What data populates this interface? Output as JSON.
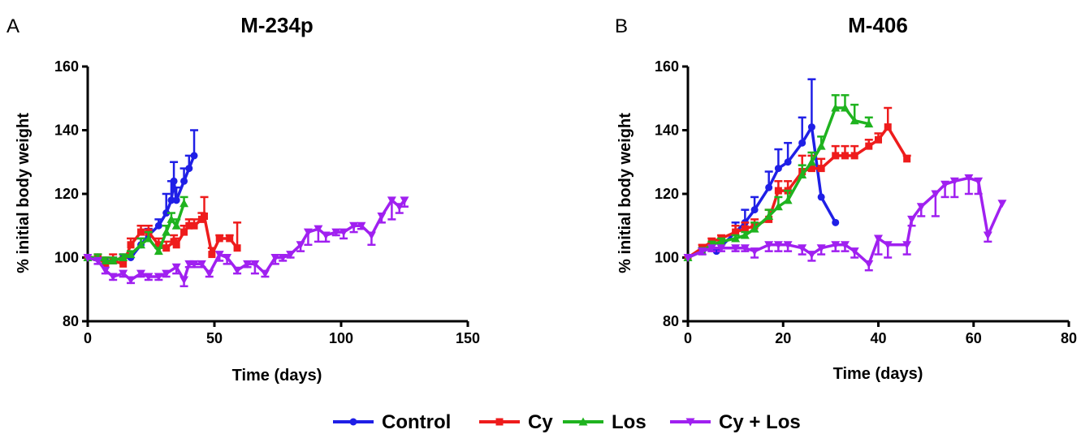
{
  "legend": [
    {
      "name": "Control",
      "color": "#1f1fe6",
      "marker": "circle"
    },
    {
      "name": "Cy",
      "color": "#ee1c1c",
      "marker": "square"
    },
    {
      "name": "Los",
      "color": "#1fb31f",
      "marker": "triangle-up"
    },
    {
      "name": "Cy + Los",
      "color": "#a020f0",
      "marker": "triangle-down"
    }
  ],
  "chart_data": [
    {
      "panel": "A",
      "title": "M-234p",
      "type": "line",
      "xlabel": "Time (days)",
      "ylabel": "% initial body weight",
      "xlim": [
        0,
        150
      ],
      "ylim": [
        80,
        160
      ],
      "xticks": [
        0,
        50,
        100,
        150
      ],
      "yticks": [
        80,
        100,
        120,
        140,
        160
      ],
      "grid": false,
      "error_bars": true,
      "series": [
        {
          "name": "Control",
          "color": "#1f1fe6",
          "marker": "circle",
          "x": [
            0,
            4,
            7,
            10,
            14,
            17,
            21,
            24,
            28,
            31,
            33,
            34,
            35,
            38,
            40,
            42
          ],
          "y": [
            100,
            100,
            99,
            99,
            100,
            100,
            104,
            107,
            110,
            114,
            118,
            124,
            118,
            124,
            128,
            132
          ],
          "err": [
            0,
            0,
            1,
            1,
            1,
            1,
            2,
            2,
            2,
            6,
            6,
            6,
            4,
            4,
            4,
            8
          ]
        },
        {
          "name": "Cy",
          "color": "#ee1c1c",
          "marker": "square",
          "x": [
            0,
            4,
            7,
            10,
            14,
            17,
            21,
            24,
            28,
            31,
            34,
            35,
            38,
            40,
            42,
            45,
            46,
            49,
            52,
            56,
            59
          ],
          "y": [
            100,
            100,
            98,
            99,
            98,
            104,
            108,
            108,
            104,
            103,
            105,
            104,
            108,
            110,
            110,
            112,
            113,
            101,
            106,
            106,
            103
          ],
          "err": [
            0,
            1,
            2,
            2,
            2,
            2,
            2,
            2,
            2,
            2,
            2,
            2,
            2,
            2,
            2,
            2,
            6,
            2,
            1,
            1,
            8
          ]
        },
        {
          "name": "Los",
          "color": "#1fb31f",
          "marker": "triangle-up",
          "x": [
            0,
            4,
            7,
            10,
            14,
            17,
            21,
            24,
            28,
            31,
            33,
            35,
            38
          ],
          "y": [
            100,
            100,
            99,
            99,
            100,
            101,
            104,
            106,
            102,
            108,
            112,
            110,
            117
          ],
          "err": [
            0,
            1,
            1,
            1,
            1,
            1,
            2,
            2,
            1,
            2,
            2,
            2,
            2
          ]
        },
        {
          "name": "Cy + Los",
          "color": "#a020f0",
          "marker": "triangle-down",
          "x": [
            0,
            4,
            7,
            10,
            14,
            17,
            21,
            24,
            28,
            31,
            35,
            38,
            40,
            42,
            45,
            48,
            52,
            55,
            59,
            63,
            66,
            70,
            74,
            77,
            80,
            84,
            87,
            91,
            94,
            98,
            101,
            105,
            108,
            112,
            116,
            120,
            123,
            125
          ],
          "y": [
            100,
            99,
            96,
            94,
            95,
            93,
            95,
            94,
            94,
            95,
            97,
            93,
            98,
            98,
            98,
            95,
            101,
            100,
            96,
            98,
            98,
            95,
            100,
            100,
            101,
            104,
            108,
            109,
            107,
            108,
            108,
            110,
            110,
            107,
            113,
            118,
            116,
            118
          ],
          "err": [
            0,
            1,
            1,
            1,
            1,
            1,
            1,
            1,
            1,
            1,
            2,
            2,
            1,
            1,
            1,
            1,
            2,
            2,
            1,
            1,
            3,
            1,
            2,
            1,
            1,
            2,
            4,
            4,
            2,
            1,
            2,
            2,
            1,
            3,
            2,
            6,
            2,
            2
          ]
        }
      ]
    },
    {
      "panel": "B",
      "title": "M-406",
      "type": "line",
      "xlabel": "Time (days)",
      "ylabel": "% initial body weight",
      "xlim": [
        0,
        80
      ],
      "ylim": [
        80,
        160
      ],
      "xticks": [
        0,
        20,
        40,
        60,
        80
      ],
      "yticks": [
        80,
        100,
        120,
        140,
        160
      ],
      "grid": false,
      "error_bars": true,
      "series": [
        {
          "name": "Control",
          "color": "#1f1fe6",
          "marker": "circle",
          "x": [
            0,
            3,
            5,
            6,
            10,
            12,
            14,
            17,
            19,
            21,
            24,
            26,
            28,
            31
          ],
          "y": [
            100,
            102,
            103,
            102,
            108,
            111,
            115,
            122,
            128,
            130,
            136,
            141,
            119,
            111
          ],
          "err": [
            0,
            1,
            1,
            1,
            3,
            4,
            4,
            5,
            6,
            6,
            8,
            15,
            0,
            0
          ]
        },
        {
          "name": "Cy",
          "color": "#ee1c1c",
          "marker": "square",
          "x": [
            0,
            3,
            5,
            7,
            10,
            12,
            14,
            17,
            19,
            21,
            24,
            26,
            28,
            31,
            33,
            35,
            38,
            40,
            42,
            46
          ],
          "y": [
            100,
            103,
            105,
            106,
            108,
            109,
            110,
            112,
            121,
            121,
            127,
            128,
            128,
            132,
            132,
            132,
            135,
            137,
            141,
            131
          ],
          "err": [
            0,
            1,
            1,
            1,
            2,
            2,
            2,
            3,
            3,
            3,
            5,
            4,
            3,
            3,
            3,
            3,
            2,
            2,
            6,
            1
          ]
        },
        {
          "name": "Los",
          "color": "#1fb31f",
          "marker": "triangle-up",
          "x": [
            0,
            3,
            5,
            7,
            10,
            12,
            14,
            17,
            19,
            21,
            24,
            26,
            28,
            31,
            33,
            35,
            38
          ],
          "y": [
            100,
            102,
            104,
            105,
            106,
            107,
            109,
            113,
            116,
            118,
            126,
            130,
            135,
            147,
            147,
            143,
            142
          ],
          "err": [
            0,
            1,
            1,
            1,
            1,
            1,
            2,
            2,
            3,
            3,
            3,
            3,
            3,
            4,
            4,
            5,
            2
          ]
        },
        {
          "name": "Cy + Los",
          "color": "#a020f0",
          "marker": "triangle-down",
          "x": [
            0,
            3,
            5,
            7,
            10,
            12,
            14,
            17,
            19,
            21,
            24,
            26,
            28,
            31,
            33,
            35,
            38,
            40,
            42,
            46,
            47,
            49,
            52,
            54,
            56,
            59,
            61,
            63,
            66
          ],
          "y": [
            100,
            102,
            103,
            103,
            103,
            103,
            102,
            104,
            104,
            104,
            103,
            101,
            103,
            104,
            104,
            102,
            98,
            106,
            104,
            104,
            112,
            116,
            120,
            123,
            124,
            125,
            124,
            107,
            117
          ],
          "err": [
            0,
            1,
            1,
            1,
            1,
            1,
            2,
            2,
            2,
            2,
            2,
            2,
            2,
            2,
            2,
            2,
            2,
            5,
            4,
            3,
            2,
            3,
            7,
            4,
            5,
            5,
            4,
            2,
            0
          ]
        }
      ]
    }
  ]
}
